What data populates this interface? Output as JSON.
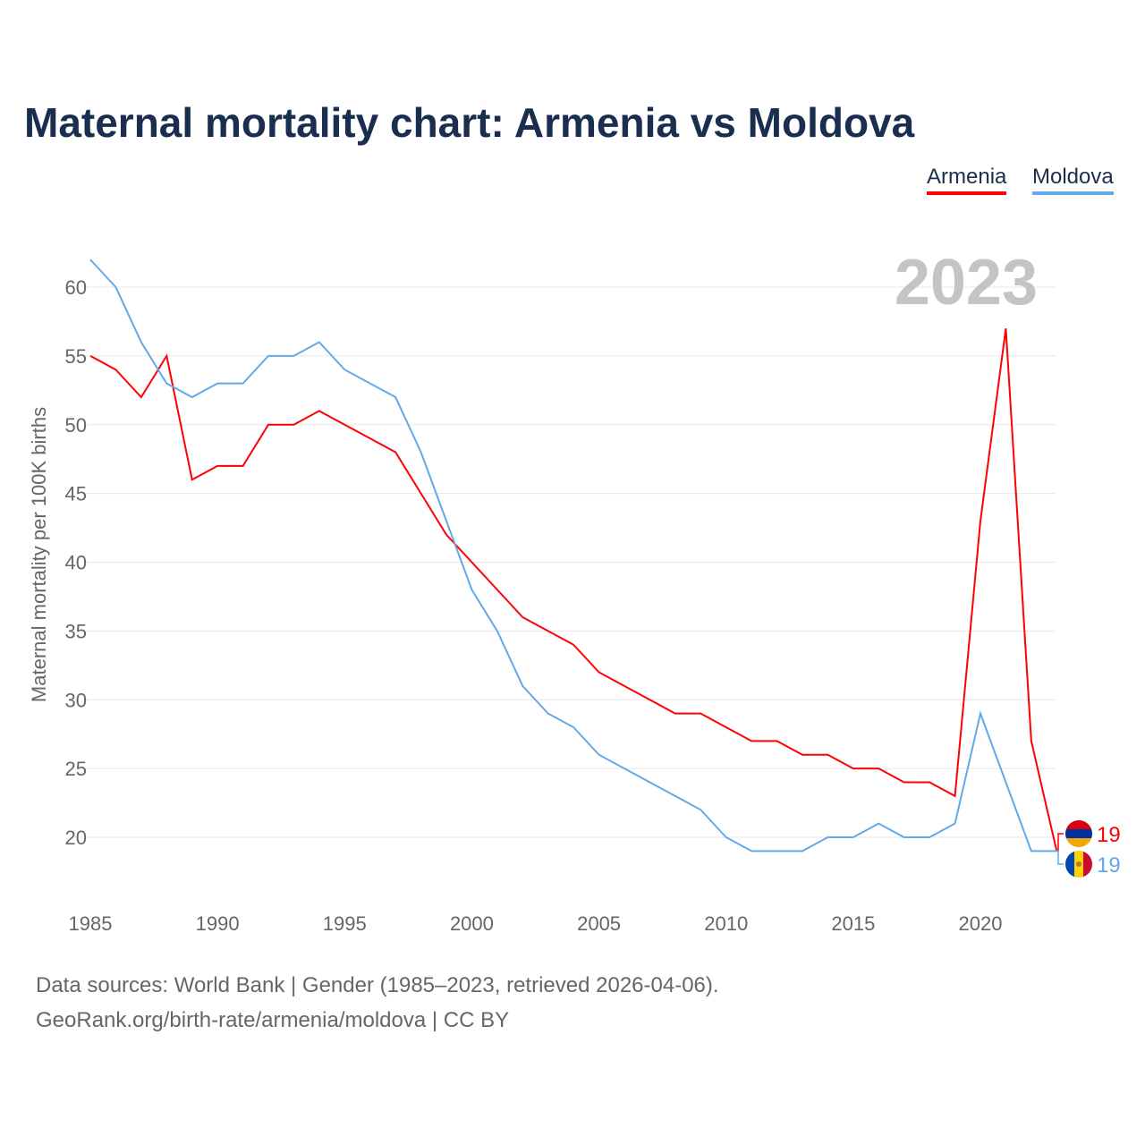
{
  "chart_data": {
    "type": "line",
    "title": "Maternal mortality chart: Armenia vs Moldova",
    "ylabel": "Maternal mortality per 100K births",
    "xlabel": "",
    "year_label": "2023",
    "x": [
      1985,
      1986,
      1987,
      1988,
      1989,
      1990,
      1991,
      1992,
      1993,
      1994,
      1995,
      1996,
      1997,
      1998,
      1999,
      2000,
      2001,
      2002,
      2003,
      2004,
      2005,
      2006,
      2007,
      2008,
      2009,
      2010,
      2011,
      2012,
      2013,
      2014,
      2015,
      2016,
      2017,
      2018,
      2019,
      2020,
      2021,
      2022,
      2023
    ],
    "series": [
      {
        "name": "Armenia",
        "color": "#ff0000",
        "end_label": "19",
        "values": [
          55,
          54,
          52,
          55,
          46,
          47,
          47,
          50,
          50,
          51,
          50,
          49,
          48,
          45,
          42,
          40,
          38,
          36,
          35,
          34,
          32,
          31,
          30,
          29,
          29,
          28,
          27,
          27,
          26,
          26,
          25,
          25,
          24,
          24,
          23,
          43,
          57,
          27,
          19
        ]
      },
      {
        "name": "Moldova",
        "color": "#62a8ea",
        "end_label": "19",
        "values": [
          62,
          60,
          56,
          53,
          52,
          53,
          53,
          55,
          55,
          56,
          54,
          53,
          52,
          48,
          43,
          38,
          35,
          31,
          29,
          28,
          26,
          25,
          24,
          23,
          22,
          20,
          19,
          19,
          19,
          20,
          20,
          21,
          20,
          20,
          21,
          29,
          24,
          19,
          19
        ]
      }
    ],
    "xticks": [
      "1985",
      "1990",
      "1995",
      "2000",
      "2005",
      "2010",
      "2015",
      "2020"
    ],
    "yticks": [
      "20",
      "25",
      "30",
      "35",
      "40",
      "45",
      "50",
      "55",
      "60"
    ],
    "xlim": [
      1985,
      2023
    ],
    "ylim": [
      20,
      60
    ],
    "grid": true,
    "legend": "top-right"
  },
  "footer": {
    "line1": "Data sources: World Bank | Gender (1985–2023, retrieved 2026-04-06).",
    "line2": "GeoRank.org/birth-rate/armenia/moldova | CC BY"
  }
}
